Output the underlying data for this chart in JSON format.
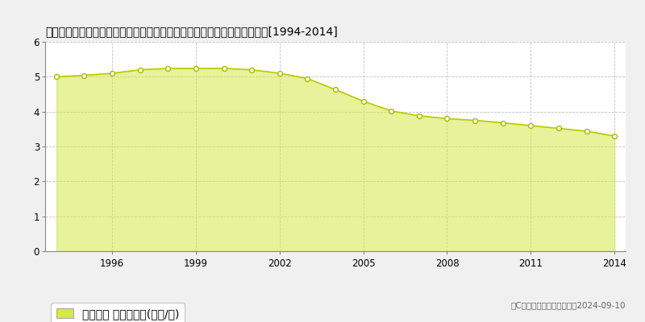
{
  "title": "宮城県尺田郡蔵王町遠尺田温泉字小妻坂７５番２５　地価公示　地価推移[1994-2014]",
  "years": [
    1994,
    1995,
    1996,
    1997,
    1998,
    1999,
    2000,
    2001,
    2002,
    2003,
    2004,
    2005,
    2006,
    2007,
    2008,
    2009,
    2010,
    2011,
    2012,
    2013,
    2014
  ],
  "values": [
    5.0,
    5.04,
    5.1,
    5.2,
    5.24,
    5.24,
    5.24,
    5.2,
    5.1,
    4.95,
    4.63,
    4.3,
    4.02,
    3.88,
    3.8,
    3.75,
    3.68,
    3.6,
    3.52,
    3.44,
    3.3
  ],
  "fill_color": "#d4e84a",
  "fill_alpha": 0.55,
  "line_color": "#b8cc00",
  "marker_facecolor": "white",
  "marker_edgecolor": "#a8bc00",
  "background_color": "#f0f0f0",
  "plot_bg_color": "#ffffff",
  "grid_color": "#bbbbbb",
  "ylim": [
    0,
    6
  ],
  "yticks": [
    0,
    1,
    2,
    3,
    4,
    5,
    6
  ],
  "xtick_years": [
    1996,
    1999,
    2002,
    2005,
    2008,
    2011,
    2014
  ],
  "legend_label": "地価公示 平均坊単価(万円/坊)",
  "copyright_text": "（C）土地価格ドットコム　2024-09-10"
}
